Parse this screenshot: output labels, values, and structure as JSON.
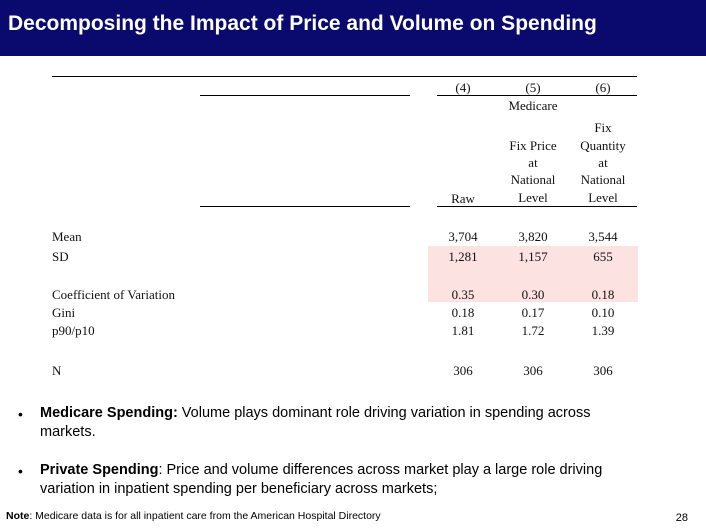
{
  "slide": {
    "title": "Decomposing the Impact of Price and Volume on Spending",
    "page_number": "28"
  },
  "table": {
    "col_numbers": [
      "(4)",
      "(5)",
      "(6)"
    ],
    "group_label": "Medicare",
    "col_headers": {
      "raw": "Raw",
      "fix_price": [
        "Fix Price",
        "at",
        "National",
        "Level"
      ],
      "fix_quantity": [
        "Fix",
        "Quantity",
        "at",
        "National",
        "Level"
      ]
    },
    "rows": [
      {
        "label": "Mean",
        "values": [
          "3,704",
          "3,820",
          "3,544"
        ]
      },
      {
        "label": "SD",
        "values": [
          "1,281",
          "1,157",
          "655"
        ]
      },
      {
        "label": "Coefficient of Variation",
        "values": [
          "0.35",
          "0.30",
          "0.18"
        ]
      },
      {
        "label": "Gini",
        "values": [
          "0.18",
          "0.17",
          "0.10"
        ]
      },
      {
        "label": "p90/p10",
        "values": [
          "1.81",
          "1.72",
          "1.39"
        ]
      },
      {
        "label": "N",
        "values": [
          "306",
          "306",
          "306"
        ]
      }
    ]
  },
  "bullets": [
    {
      "marker": "•",
      "bold": "Medicare Spending:",
      "text": " Volume plays dominant role driving variation in spending across",
      "text2": "markets."
    },
    {
      "marker": "•",
      "bold": "Private Spending",
      "text": ": Price and volume differences across market play a large role driving",
      "text2": "variation in inpatient spending per beneficiary across markets;"
    }
  ],
  "note": {
    "bold": "Note",
    "text": ": Medicare data is for all inpatient care from the American Hospital Directory"
  },
  "colors": {
    "title_bg": "#0a0a6e",
    "title_text": "#ffffff",
    "highlight": "#fde2e2"
  }
}
